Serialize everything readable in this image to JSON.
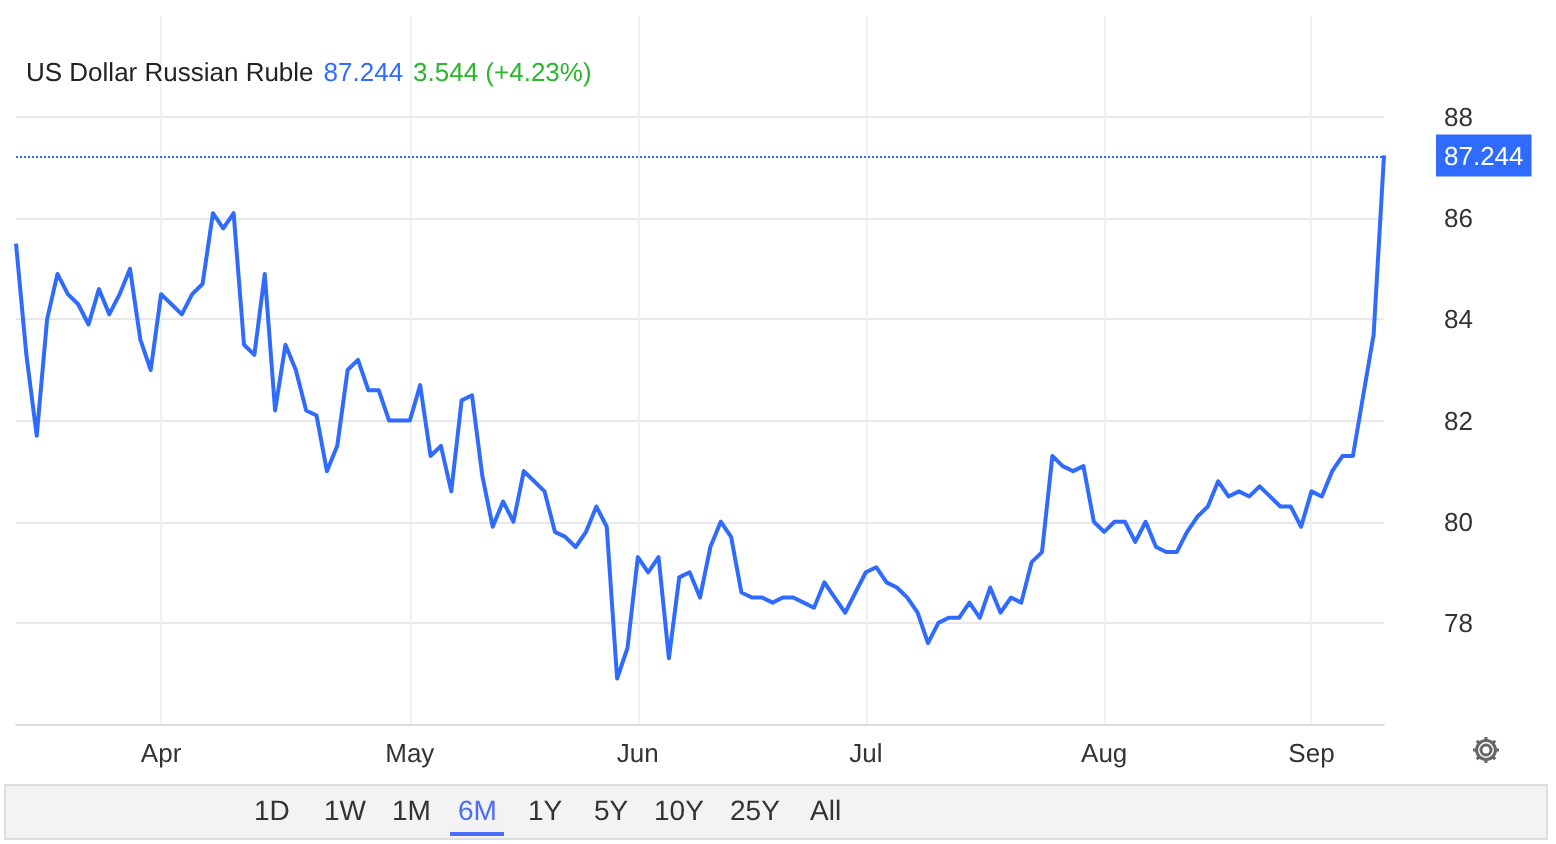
{
  "chart_data": {
    "type": "line",
    "title": "US Dollar Russian Ruble",
    "subtitle": "87.244",
    "annotations": [
      "3.544 (+4.23%)",
      "1D",
      "1W",
      "1M",
      "6M",
      "1Y",
      "5Y",
      "10Y",
      "25Y",
      "All"
    ],
    "categories": [
      null,
      null,
      null,
      null,
      null,
      null,
      null,
      null,
      null,
      null,
      null,
      null,
      null,
      null,
      "Apr",
      null,
      null,
      null,
      null,
      null,
      null,
      null,
      null,
      null,
      null,
      null,
      null,
      null,
      null,
      null,
      null,
      null,
      null,
      null,
      null,
      null,
      null,
      null,
      "May",
      null,
      null,
      null,
      null,
      null,
      null,
      null,
      null,
      null,
      null,
      null,
      null,
      null,
      null,
      null,
      null,
      null,
      null,
      null,
      null,
      null,
      "Jun",
      null,
      null,
      null,
      null,
      null,
      null,
      null,
      null,
      null,
      null,
      null,
      null,
      null,
      null,
      null,
      null,
      null,
      null,
      null,
      null,
      null,
      "Jul",
      null,
      null,
      null,
      null,
      null,
      null,
      null,
      null,
      null,
      null,
      null,
      null,
      null,
      null,
      null,
      null,
      null,
      null,
      null,
      null,
      null,
      null,
      "Aug",
      null,
      null,
      null,
      null,
      null,
      null,
      null,
      null,
      null,
      null,
      null,
      null,
      null,
      null,
      null,
      null,
      null,
      null,
      null,
      "Sep",
      null,
      null,
      null,
      null,
      null,
      null,
      null
    ],
    "series": [
      {
        "color": "#2f6bff",
        "values": [
          85.5,
          83.3,
          81.7,
          84.0,
          84.9,
          84.5,
          84.3,
          83.9,
          84.6,
          84.1,
          84.5,
          85.0,
          83.6,
          83.0,
          84.5,
          84.3,
          84.1,
          84.5,
          84.7,
          86.1,
          85.8,
          86.1,
          83.5,
          83.3,
          84.9,
          82.2,
          83.5,
          83.0,
          82.2,
          82.1,
          81.0,
          81.5,
          83.0,
          83.2,
          82.6,
          82.6,
          82.0,
          82.0,
          82.0,
          82.7,
          81.3,
          81.5,
          80.6,
          82.4,
          82.5,
          80.9,
          79.9,
          80.4,
          80.0,
          81.0,
          80.8,
          80.6,
          79.8,
          79.7,
          79.5,
          79.8,
          80.3,
          79.9,
          76.9,
          77.5,
          79.3,
          79.0,
          79.3,
          77.3,
          78.9,
          79.0,
          78.5,
          79.5,
          80.0,
          79.7,
          78.6,
          78.5,
          78.5,
          78.4,
          78.5,
          78.5,
          78.4,
          78.3,
          78.8,
          78.5,
          78.2,
          78.6,
          79.0,
          79.1,
          78.8,
          78.7,
          78.5,
          78.2,
          77.6,
          78.0,
          78.1,
          78.1,
          78.4,
          78.1,
          78.7,
          78.2,
          78.5,
          78.4,
          79.2,
          79.4,
          81.3,
          81.1,
          81.0,
          81.1,
          80.0,
          79.8,
          80.0,
          80.0,
          79.6,
          80.0,
          79.5,
          79.4,
          79.4,
          79.8,
          80.1,
          80.3,
          80.8,
          80.5,
          80.6,
          80.5,
          80.7,
          80.5,
          80.3,
          80.3,
          79.9,
          80.6,
          80.5,
          81.0,
          81.3,
          81.3,
          82.5,
          83.7,
          87.244
        ]
      }
    ],
    "ylim": [
      76,
      90
    ],
    "yticks": [
      78,
      80,
      82,
      84,
      86,
      88
    ],
    "grid": true,
    "marker": "none",
    "line_style": "solid",
    "ref_lines": [
      {
        "axis": "y",
        "value": 87.244,
        "label": "87.244",
        "color": "#2f6bff",
        "line_style": "dotted"
      }
    ]
  }
}
